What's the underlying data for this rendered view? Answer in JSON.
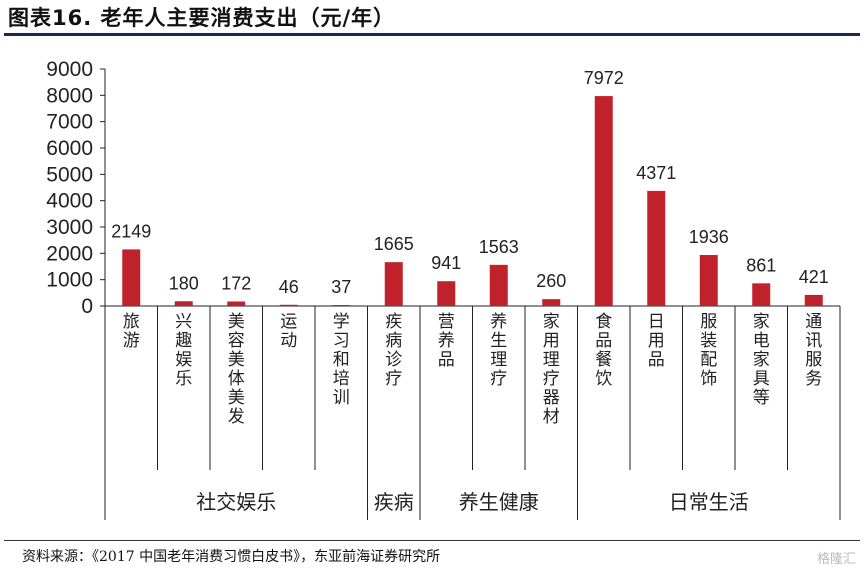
{
  "header": {
    "title": "图表16. 老年人主要消费支出（元/年）"
  },
  "footer": {
    "source": "资料来源：《2017 中国老年消费习惯白皮书》，东亚前海证券研究所",
    "watermark": "格隆汇"
  },
  "chart_data": {
    "type": "bar",
    "title": "老年人主要消费支出（元/年）",
    "categories": [
      "旅游",
      "兴趣娱乐",
      "美容美体美发",
      "运动",
      "学习和培训",
      "疾病诊疗",
      "营养品",
      "养生理疗",
      "家用理疗器材",
      "食品餐饮",
      "日用品",
      "服装配饰",
      "家电家具等",
      "通讯服务"
    ],
    "values": [
      2149,
      180,
      172,
      46,
      37,
      1665,
      941,
      1563,
      260,
      7972,
      4371,
      1936,
      861,
      421
    ],
    "groups": [
      {
        "name": "社交娱乐",
        "categories": [
          "旅游",
          "兴趣娱乐",
          "美容美体美发",
          "运动",
          "学习和培训"
        ]
      },
      {
        "name": "疾病",
        "categories": [
          "疾病诊疗"
        ]
      },
      {
        "name": "养生健康",
        "categories": [
          "营养品",
          "养生理疗",
          "家用理疗器材"
        ]
      },
      {
        "name": "日常生活",
        "categories": [
          "食品餐饮",
          "日用品",
          "服装配饰",
          "家电家具等",
          "通讯服务"
        ]
      }
    ],
    "yticks": [
      0,
      1000,
      2000,
      3000,
      4000,
      5000,
      6000,
      7000,
      8000,
      9000
    ],
    "ylim": [
      0,
      9000
    ],
    "bar_color": "#c0222b",
    "grid": false,
    "legend": "none"
  }
}
